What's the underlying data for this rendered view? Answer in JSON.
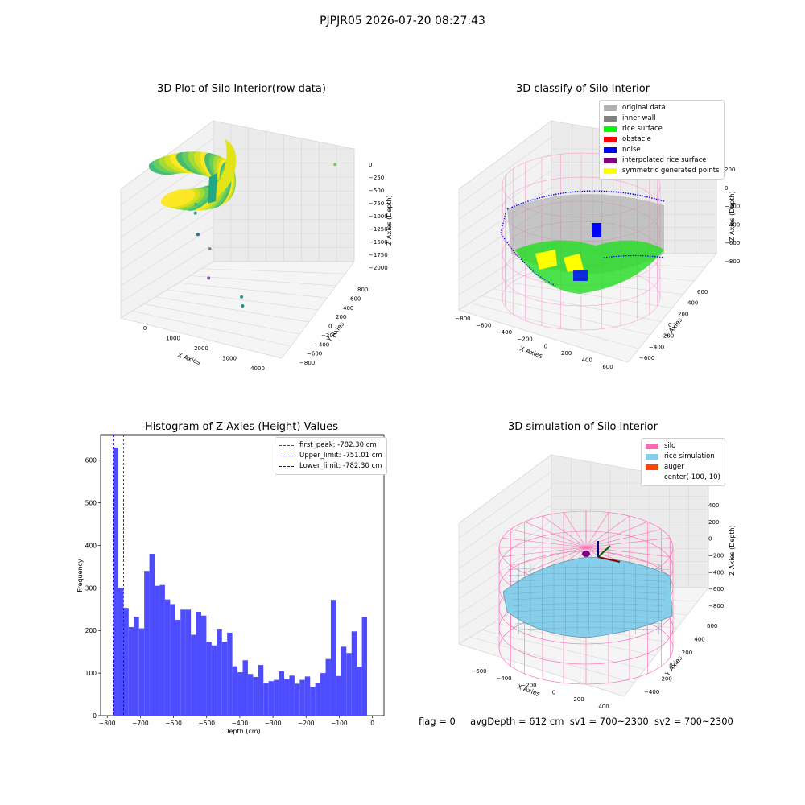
{
  "figure_title": "PJPJR05 2026-07-20 08:27:43",
  "chart_data": [
    {
      "type": "scatter",
      "title": "3D Plot of Silo Interior(row data)",
      "xlabel": "X Axies",
      "ylabel": "Y Axies",
      "zlabel": "Z Axies (Depth)",
      "x_ticks": [
        "0",
        "1000",
        "2000",
        "3000",
        "4000"
      ],
      "y_ticks": [
        "800",
        "600",
        "400",
        "200",
        "0",
        "−200",
        "−400",
        "−600",
        "−800"
      ],
      "z_ticks": [
        "0",
        "−250",
        "−500",
        "−750",
        "−1000",
        "−1250",
        "−1500",
        "−1750",
        "−2000"
      ],
      "xlim": [
        -600,
        4400
      ],
      "ylim": [
        -850,
        850
      ],
      "zlim": [
        -2050,
        100
      ],
      "colormap": "viridis",
      "outlier_points": [
        {
          "x": 3600,
          "y": 600,
          "z": -320
        },
        {
          "x": 300,
          "y": 0,
          "z": -900
        },
        {
          "x": 450,
          "y": -100,
          "z": -950
        },
        {
          "x": 700,
          "y": -200,
          "z": -1150
        },
        {
          "x": 900,
          "y": -100,
          "z": -1350
        },
        {
          "x": 1200,
          "y": -300,
          "z": -1600
        },
        {
          "x": 2900,
          "y": -700,
          "z": -1500
        },
        {
          "x": 3100,
          "y": -800,
          "z": -1550
        }
      ]
    },
    {
      "type": "scatter",
      "title": "3D classify of Silo Interior",
      "xlabel": "X Axies",
      "ylabel": "Y Axies",
      "zlabel": "Z Axies (Depth)",
      "x_ticks": [
        "−800",
        "−600",
        "−400",
        "−200",
        "0",
        "200",
        "400",
        "600"
      ],
      "y_ticks": [
        "600",
        "400",
        "200",
        "0",
        "−200",
        "−400",
        "−600"
      ],
      "z_ticks": [
        "200",
        "0",
        "−200",
        "−400",
        "−600",
        "−800"
      ],
      "legend": [
        {
          "label": "original data",
          "color": "#b0b0b0"
        },
        {
          "label": "inner wall",
          "color": "#808080"
        },
        {
          "label": "rice surface",
          "color": "#00ff00"
        },
        {
          "label": "obstacle",
          "color": "#ff0000"
        },
        {
          "label": "noise",
          "color": "#0000ff"
        },
        {
          "label": "interpolated rice surface",
          "color": "#800080"
        },
        {
          "label": "symmetric generated points",
          "color": "#ffff00"
        }
      ]
    },
    {
      "type": "bar",
      "title": "Histogram of Z-Axies (Height) Values",
      "xlabel": "Depth (cm)",
      "ylabel": "Frequency",
      "bar_color": "#4d4dff",
      "bin_start": -782.3,
      "bin_width": 15.64,
      "values": [
        630,
        300,
        253,
        208,
        232,
        205,
        340,
        380,
        305,
        307,
        273,
        262,
        225,
        249,
        249,
        190,
        244,
        235,
        174,
        165,
        204,
        174,
        195,
        116,
        102,
        130,
        98,
        91,
        119,
        77,
        81,
        84,
        104,
        85,
        94,
        75,
        84,
        92,
        67,
        77,
        100,
        133,
        272,
        93,
        162,
        147,
        198,
        115,
        232
      ],
      "xlim": [
        -820,
        35
      ],
      "ylim": [
        0,
        660
      ],
      "x_ticks": [
        -800,
        -700,
        -600,
        -500,
        -400,
        -300,
        -200,
        -100,
        0
      ],
      "y_ticks": [
        0,
        100,
        200,
        300,
        400,
        500,
        600
      ],
      "vlines": [
        {
          "label": "first_peak: -782.30 cm",
          "x": -782.3,
          "color": "#ff0000"
        },
        {
          "label": "Upper_limit: -751.01 cm",
          "x": -751.01,
          "color": "#0000ff"
        },
        {
          "label": "Lower_limit: -782.30 cm",
          "x": -782.3,
          "color": "#0000ff"
        }
      ]
    },
    {
      "type": "area",
      "title": "3D simulation of Silo Interior",
      "xlabel": "X Axies",
      "ylabel": "Y Axies",
      "zlabel": "Z Axies (Depth)",
      "x_ticks": [
        "−600",
        "−400",
        "−200",
        "0",
        "200",
        "400"
      ],
      "y_ticks": [
        "600",
        "400",
        "200",
        "0",
        "−200",
        "−400"
      ],
      "z_ticks": [
        "400",
        "200",
        "0",
        "−200",
        "−400",
        "−600",
        "−800"
      ],
      "legend": [
        {
          "label": "silo",
          "color": "#ff69b4"
        },
        {
          "label": "rice simulation",
          "color": "#87ceeb"
        },
        {
          "label": "auger",
          "color": "#ff4500"
        },
        {
          "label": "center(-100,-10)",
          "color": ""
        }
      ]
    }
  ],
  "footer": {
    "flag": "flag = 0",
    "avg_depth": "avgDepth = 612 cm",
    "sv1": "sv1 = 700~2300",
    "sv2": "sv2 = 700~2300"
  }
}
